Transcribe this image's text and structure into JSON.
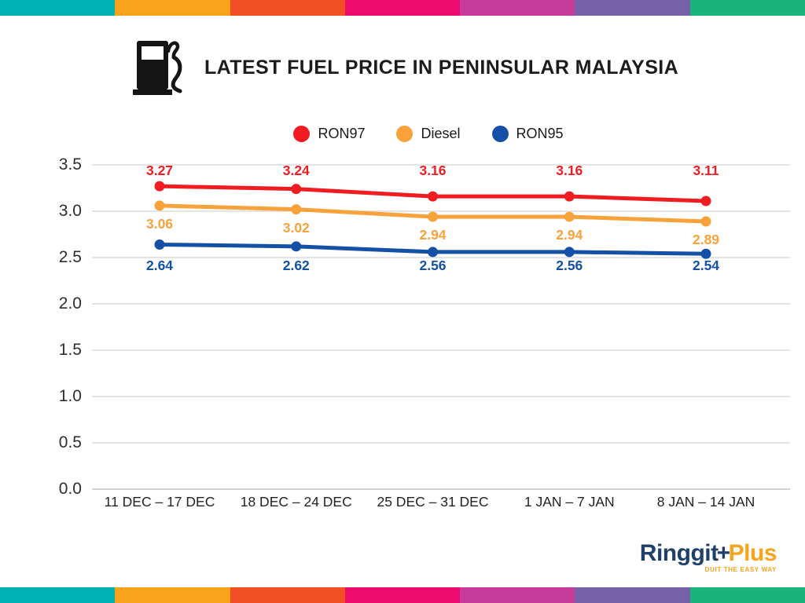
{
  "decor": {
    "bar_colors": [
      "#00B1B3",
      "#F9A21B",
      "#F05023",
      "#EC0C6E",
      "#C73C9B",
      "#7660A8",
      "#1BB27C"
    ]
  },
  "header": {
    "title": "LATEST FUEL PRICE IN PENINSULAR MALAYSIA",
    "icon": "fuel-pump-icon"
  },
  "chart_data": {
    "type": "line",
    "title": "LATEST FUEL PRICE IN PENINSULAR MALAYSIA",
    "categories": [
      "11 DEC – 17 DEC",
      "18 DEC – 24 DEC",
      "25 DEC – 31 DEC",
      "1 JAN – 7 JAN",
      "8 JAN – 14 JAN"
    ],
    "series": [
      {
        "name": "RON97",
        "color": "#EF1D21",
        "values": [
          3.27,
          3.24,
          3.16,
          3.16,
          3.11
        ]
      },
      {
        "name": "Diesel",
        "color": "#F9A23C",
        "values": [
          3.06,
          3.02,
          2.94,
          2.94,
          2.89
        ]
      },
      {
        "name": "RON95",
        "color": "#1450A5",
        "values": [
          2.64,
          2.62,
          2.56,
          2.56,
          2.54
        ]
      }
    ],
    "xlabel": "",
    "ylabel": "",
    "ylim": [
      0,
      3.5
    ],
    "ytick_step": 0.5,
    "yticks": [
      "3.5",
      "3.0",
      "2.5",
      "2.0",
      "1.5",
      "1.0",
      "0.5",
      "0.0"
    ],
    "grid": true,
    "legend_position": "top-center",
    "data_labels": true
  },
  "footer": {
    "logo": {
      "part1": "Ringgit",
      "plus": "+",
      "part2": "Plus",
      "tagline": "DUIT THE EASY WAY",
      "navy": "#1F4068",
      "orange": "#F9A21B"
    }
  }
}
